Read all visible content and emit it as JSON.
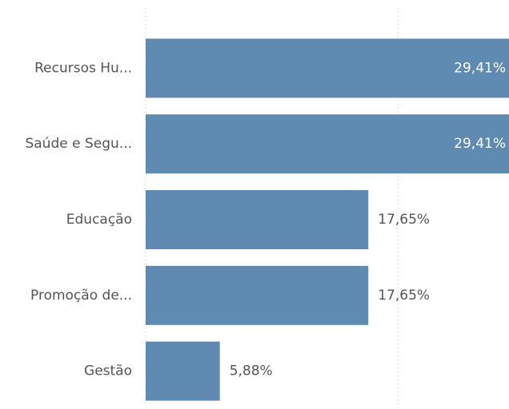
{
  "chart_data": {
    "type": "bar",
    "orientation": "horizontal",
    "categories": [
      "Recursos Hu...",
      "Saúde e Segu...",
      "Educação",
      "Promoção de...",
      "Gestão"
    ],
    "values": [
      29.41,
      29.41,
      17.65,
      17.65,
      5.88
    ],
    "value_labels": [
      "29,41%",
      "29,41%",
      "17,65%",
      "17,65%",
      "5,88%"
    ],
    "color": "#5f8ab1",
    "xlim": [
      0,
      28.8
    ],
    "xgrid": [
      0,
      20
    ]
  }
}
